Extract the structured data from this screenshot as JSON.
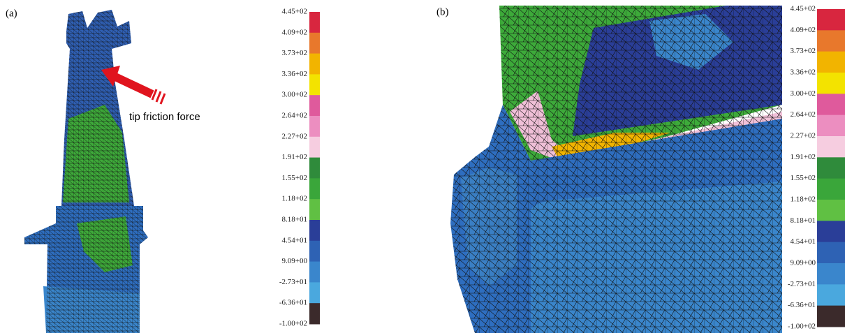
{
  "panels": [
    {
      "label": "(a)",
      "annotation": "tip friction force",
      "colorbar_labels": [
        "4.45+02",
        "4.09+02",
        "3.73+02",
        "3.36+02",
        "3.00+02",
        "2.64+02",
        "2.27+02",
        "1.91+02",
        "1.55+02",
        "1.18+02",
        "8.18+01",
        "4.54+01",
        "9.09+00",
        "-2.73+01",
        "-6.36+01",
        "-1.00+02"
      ]
    },
    {
      "label": "(b)",
      "colorbar_labels": [
        "4.45+02",
        "4.09+02",
        "3.73+02",
        "3.36+02",
        "3.00+02",
        "2.64+02",
        "2.27+02",
        "1.91+02",
        "1.55+02",
        "1.18+02",
        "8.18+01",
        "4.54+01",
        "9.09+00",
        "-2.73+01",
        "-6.36+01",
        "-1.00+02"
      ]
    }
  ],
  "colorbar_colors": [
    "#d8263f",
    "#e8782c",
    "#f2b400",
    "#f3e300",
    "#df5a9c",
    "#ec8ec0",
    "#f6cde0",
    "#2f8b3b",
    "#3aa63a",
    "#60c043",
    "#2a3e98",
    "#2e62b4",
    "#3a86cc",
    "#4aa8de",
    "#3b2a2b"
  ]
}
